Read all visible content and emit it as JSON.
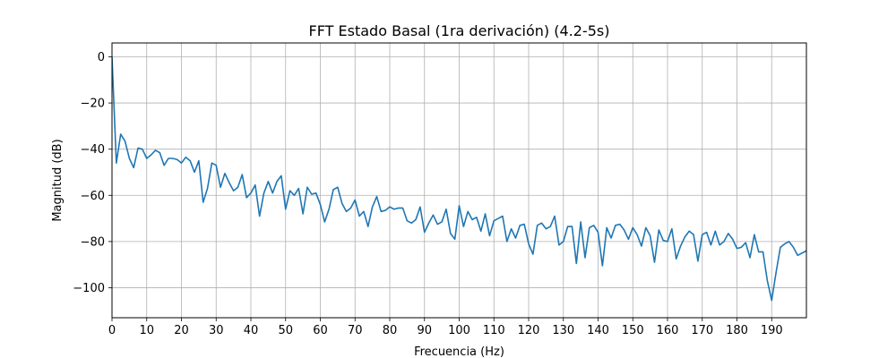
{
  "chart_data": {
    "type": "line",
    "title": "FFT Estado Basal (1ra derivación) (4.2-5s)",
    "xlabel": "Frecuencia (Hz)",
    "ylabel": "Magnitud (dB)",
    "xlim": [
      0,
      200
    ],
    "ylim": [
      -113,
      6
    ],
    "grid": true,
    "xticks": [
      0,
      10,
      20,
      30,
      40,
      50,
      60,
      70,
      80,
      90,
      100,
      110,
      120,
      130,
      140,
      150,
      160,
      170,
      180,
      190
    ],
    "xtick_labels": [
      "0",
      "10",
      "20",
      "30",
      "40",
      "50",
      "60",
      "70",
      "80",
      "90",
      "100",
      "110",
      "120",
      "130",
      "140",
      "150",
      "160",
      "170",
      "180",
      "190"
    ],
    "yticks": [
      0,
      -20,
      -40,
      -60,
      -80,
      -100
    ],
    "ytick_labels": [
      "0",
      "−20",
      "−40",
      "−60",
      "−80",
      "−100"
    ],
    "series": [
      {
        "name": "FFT",
        "color": "#1f77b4",
        "x": [
          0,
          1.25,
          2.5,
          3.75,
          5,
          6.25,
          7.5,
          8.75,
          10,
          11.25,
          12.5,
          13.75,
          15,
          16.25,
          17.5,
          18.75,
          20,
          21.25,
          22.5,
          23.75,
          25,
          26.25,
          27.5,
          28.75,
          30,
          31.25,
          32.5,
          33.75,
          35,
          36.25,
          37.5,
          38.75,
          40,
          41.25,
          42.5,
          43.75,
          45,
          46.25,
          47.5,
          48.75,
          50,
          51.25,
          52.5,
          53.75,
          55,
          56.25,
          57.5,
          58.75,
          60,
          61.25,
          62.5,
          63.75,
          65,
          66.25,
          67.5,
          68.75,
          70,
          71.25,
          72.5,
          73.75,
          75,
          76.25,
          77.5,
          78.75,
          80,
          81.25,
          82.5,
          83.75,
          85,
          86.25,
          87.5,
          88.75,
          90,
          91.25,
          92.5,
          93.75,
          95,
          96.25,
          97.5,
          98.75,
          100,
          101.25,
          102.5,
          103.75,
          105,
          106.25,
          107.5,
          108.75,
          110,
          111.25,
          112.5,
          113.75,
          115,
          116.25,
          117.5,
          118.75,
          120,
          121.25,
          122.5,
          123.75,
          125,
          126.25,
          127.5,
          128.75,
          130,
          131.25,
          132.5,
          133.75,
          135,
          136.25,
          137.5,
          138.75,
          140,
          141.25,
          142.5,
          143.75,
          145,
          146.25,
          147.5,
          148.75,
          150,
          151.25,
          152.5,
          153.75,
          155,
          156.25,
          157.5,
          158.75,
          160,
          161.25,
          162.5,
          163.75,
          165,
          166.25,
          167.5,
          168.75,
          170,
          171.25,
          172.5,
          173.75,
          175,
          176.25,
          177.5,
          178.75,
          180,
          181.25,
          182.5,
          183.75,
          185,
          186.25,
          187.5,
          188.75,
          190,
          191.25,
          192.5,
          193.75,
          195,
          196.25,
          197.5,
          198.75,
          200
        ],
        "values": [
          0,
          -46,
          -33.5,
          -36.5,
          -44,
          -48,
          -39.5,
          -40,
          -44,
          -42.5,
          -40.5,
          -41.5,
          -47,
          -44,
          -44,
          -44.5,
          -46,
          -43.5,
          -45,
          -50,
          -45,
          -63,
          -57,
          -46,
          -47,
          -56.5,
          -50.5,
          -54.5,
          -58,
          -56.5,
          -51,
          -61,
          -59,
          -55.5,
          -69,
          -59,
          -54,
          -59,
          -54,
          -51.5,
          -66,
          -58,
          -60,
          -57,
          -68,
          -56.5,
          -59.5,
          -59,
          -64,
          -71.5,
          -66,
          -57.5,
          -56.5,
          -63.5,
          -67,
          -65.5,
          -62,
          -69,
          -67,
          -73.5,
          -65,
          -60.5,
          -67,
          -66.5,
          -65,
          -66,
          -65.5,
          -65.5,
          -71,
          -72,
          -70.5,
          -65,
          -76,
          -72,
          -68.5,
          -72.5,
          -71.5,
          -66,
          -76.5,
          -79,
          -64.5,
          -73.5,
          -67,
          -70.5,
          -69.5,
          -75.5,
          -68,
          -77.5,
          -71,
          -70,
          -69,
          -80,
          -74.5,
          -78.5,
          -73,
          -72.5,
          -81,
          -85.5,
          -73,
          -72,
          -74.5,
          -73.5,
          -69,
          -81.5,
          -80,
          -73.5,
          -73.5,
          -89.5,
          -71.5,
          -87,
          -74,
          -73,
          -76,
          -90.5,
          -74,
          -78.5,
          -73,
          -72.5,
          -75,
          -79,
          -74,
          -77,
          -82,
          -74,
          -77.5,
          -89,
          -75,
          -79.5,
          -80,
          -74.5,
          -87.5,
          -82,
          -78,
          -75.5,
          -77,
          -88.5,
          -77,
          -76,
          -81.5,
          -75.5,
          -81.5,
          -80,
          -76.5,
          -79,
          -83,
          -82.5,
          -80.5,
          -87,
          -77,
          -84.5,
          -84.5,
          -97,
          -105.5,
          -93.5,
          -82.5,
          -81,
          -80,
          -82.5,
          -86,
          -85,
          -84
        ]
      }
    ]
  }
}
